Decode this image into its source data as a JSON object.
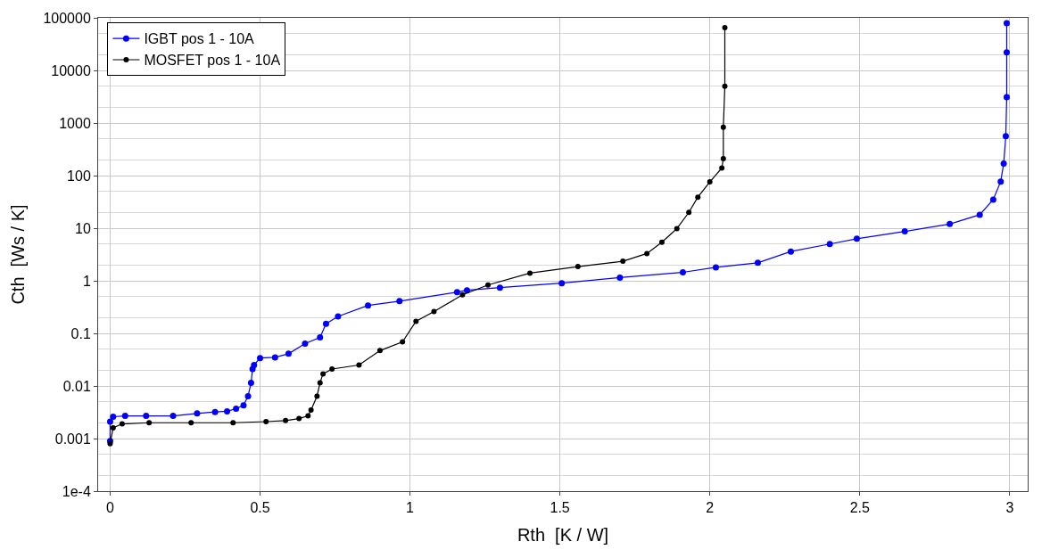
{
  "chart_data": {
    "type": "line",
    "xlabel": "Rth  [K / W]",
    "ylabel": "Cth  [Ws / K]",
    "log": "y",
    "grid": true,
    "legend": "top left",
    "marker": "circle",
    "line_style": "solid",
    "xlim": [
      -0.04,
      3.06
    ],
    "xticks": [
      0,
      0.5,
      1,
      1.5,
      2,
      2.5,
      3
    ],
    "ylim": [
      0.0001,
      100000
    ],
    "yticks": [
      {
        "value": 0.0001,
        "label": "1e-4"
      },
      0.001,
      0.01,
      0.1,
      1,
      10,
      100,
      1000,
      10000,
      100000
    ],
    "series": [
      {
        "name": "IGBT pos 1 - 10A",
        "color": "#0000ff",
        "x": [
          0,
          0,
          0.01,
          0.05,
          0.12,
          0.21,
          0.29,
          0.35,
          0.39,
          0.42,
          0.445,
          0.46,
          0.47,
          0.475,
          0.48,
          0.5,
          0.55,
          0.595,
          0.65,
          0.7,
          0.72,
          0.76,
          0.86,
          0.965,
          1.157,
          1.19,
          1.3,
          1.506,
          1.7,
          1.91,
          2.02,
          2.16,
          2.27,
          2.4,
          2.49,
          2.65,
          2.8,
          2.9,
          2.945,
          2.97,
          2.98,
          2.987,
          2.99,
          2.99,
          2.99
        ],
        "values": [
          0.0009,
          0.0021,
          0.0026,
          0.0027,
          0.0027,
          0.0027,
          0.003,
          0.0032,
          0.0033,
          0.0037,
          0.0043,
          0.0064,
          0.0115,
          0.021,
          0.025,
          0.034,
          0.035,
          0.041,
          0.064,
          0.084,
          0.152,
          0.21,
          0.34,
          0.41,
          0.61,
          0.66,
          0.74,
          0.9,
          1.15,
          1.45,
          1.8,
          2.2,
          3.6,
          5,
          6.3,
          8.7,
          12,
          18,
          35,
          77,
          170,
          560,
          3100,
          22000,
          79000
        ]
      },
      {
        "name": "MOSFET pos 1 - 10A",
        "color": "#000000",
        "x": [
          0,
          0.01,
          0.04,
          0.13,
          0.27,
          0.41,
          0.52,
          0.585,
          0.63,
          0.66,
          0.67,
          0.69,
          0.7,
          0.71,
          0.74,
          0.83,
          0.9,
          0.975,
          1.02,
          1.08,
          1.175,
          1.26,
          1.4,
          1.56,
          1.71,
          1.79,
          1.84,
          1.89,
          1.93,
          1.96,
          2.0,
          2.04,
          2.045,
          2.045,
          2.05,
          2.05
        ],
        "values": [
          0.0008,
          0.0016,
          0.0019,
          0.002,
          0.002,
          0.002,
          0.0021,
          0.0022,
          0.0024,
          0.0027,
          0.0035,
          0.0064,
          0.0115,
          0.017,
          0.021,
          0.025,
          0.047,
          0.069,
          0.17,
          0.26,
          0.54,
          0.83,
          1.4,
          1.86,
          2.35,
          3.3,
          5.4,
          9.8,
          20,
          39,
          76,
          140,
          210,
          830,
          5000,
          65000
        ]
      }
    ]
  }
}
